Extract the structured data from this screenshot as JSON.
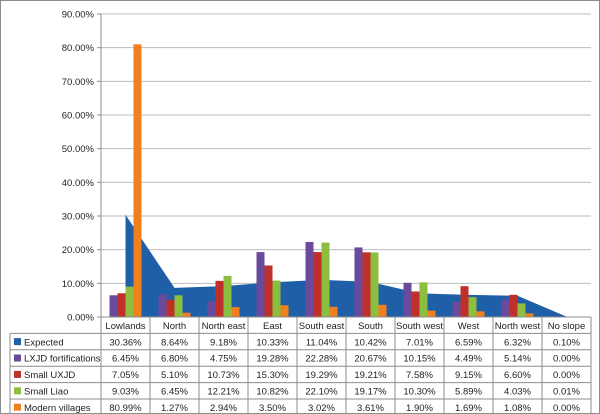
{
  "chart_data": {
    "type": "bar",
    "categories": [
      "Lowlands",
      "North",
      "North east",
      "East",
      "South east",
      "South",
      "South west",
      "West",
      "North west",
      "No slope"
    ],
    "series": [
      {
        "name": "Expected",
        "render": "area",
        "color": "#1f5fa8",
        "values": [
          30.36,
          8.64,
          9.18,
          10.33,
          11.04,
          10.42,
          7.01,
          6.59,
          6.32,
          0.1
        ],
        "labels": [
          "30.36%",
          "8.64%",
          "9.18%",
          "10.33%",
          "11.04%",
          "10.42%",
          "7.01%",
          "6.59%",
          "6.32%",
          "0.10%"
        ]
      },
      {
        "name": "LXJD fortifications",
        "render": "bar",
        "color": "#6a4a9c",
        "values": [
          6.45,
          6.8,
          4.75,
          19.28,
          22.28,
          20.67,
          10.15,
          4.49,
          5.14,
          0.0
        ],
        "labels": [
          "6.45%",
          "6.80%",
          "4.75%",
          "19.28%",
          "22.28%",
          "20.67%",
          "10.15%",
          "4.49%",
          "5.14%",
          "0.00%"
        ]
      },
      {
        "name": "Small UXJD",
        "render": "bar",
        "color": "#c0302a",
        "values": [
          7.05,
          5.1,
          10.73,
          15.3,
          19.29,
          19.21,
          7.58,
          9.15,
          6.6,
          0.0
        ],
        "labels": [
          "7.05%",
          "5.10%",
          "10.73%",
          "15.30%",
          "19.29%",
          "19.21%",
          "7.58%",
          "9.15%",
          "6.60%",
          "0.00%"
        ]
      },
      {
        "name": "Small Liao",
        "render": "bar",
        "color": "#8cbf3f",
        "values": [
          9.03,
          6.45,
          12.21,
          10.82,
          22.1,
          19.17,
          10.3,
          5.89,
          4.03,
          0.01
        ],
        "labels": [
          "9.03%",
          "6.45%",
          "12.21%",
          "10.82%",
          "22.10%",
          "19.17%",
          "10.30%",
          "5.89%",
          "4.03%",
          "0.01%"
        ]
      },
      {
        "name": "Modern villages",
        "render": "bar",
        "color": "#f07f1e",
        "values": [
          80.99,
          1.27,
          2.94,
          3.5,
          3.02,
          3.61,
          1.9,
          1.69,
          1.08,
          0.0
        ],
        "labels": [
          "80.99%",
          "1.27%",
          "2.94%",
          "3.50%",
          "3.02%",
          "3.61%",
          "1.90%",
          "1.69%",
          "1.08%",
          "0.00%"
        ]
      }
    ],
    "ylim": [
      0,
      90
    ],
    "yticks": [
      "0.00%",
      "10.00%",
      "20.00%",
      "30.00%",
      "40.00%",
      "50.00%",
      "60.00%",
      "70.00%",
      "80.00%",
      "90.00%"
    ],
    "grid": true,
    "legend": "data-table-below"
  }
}
